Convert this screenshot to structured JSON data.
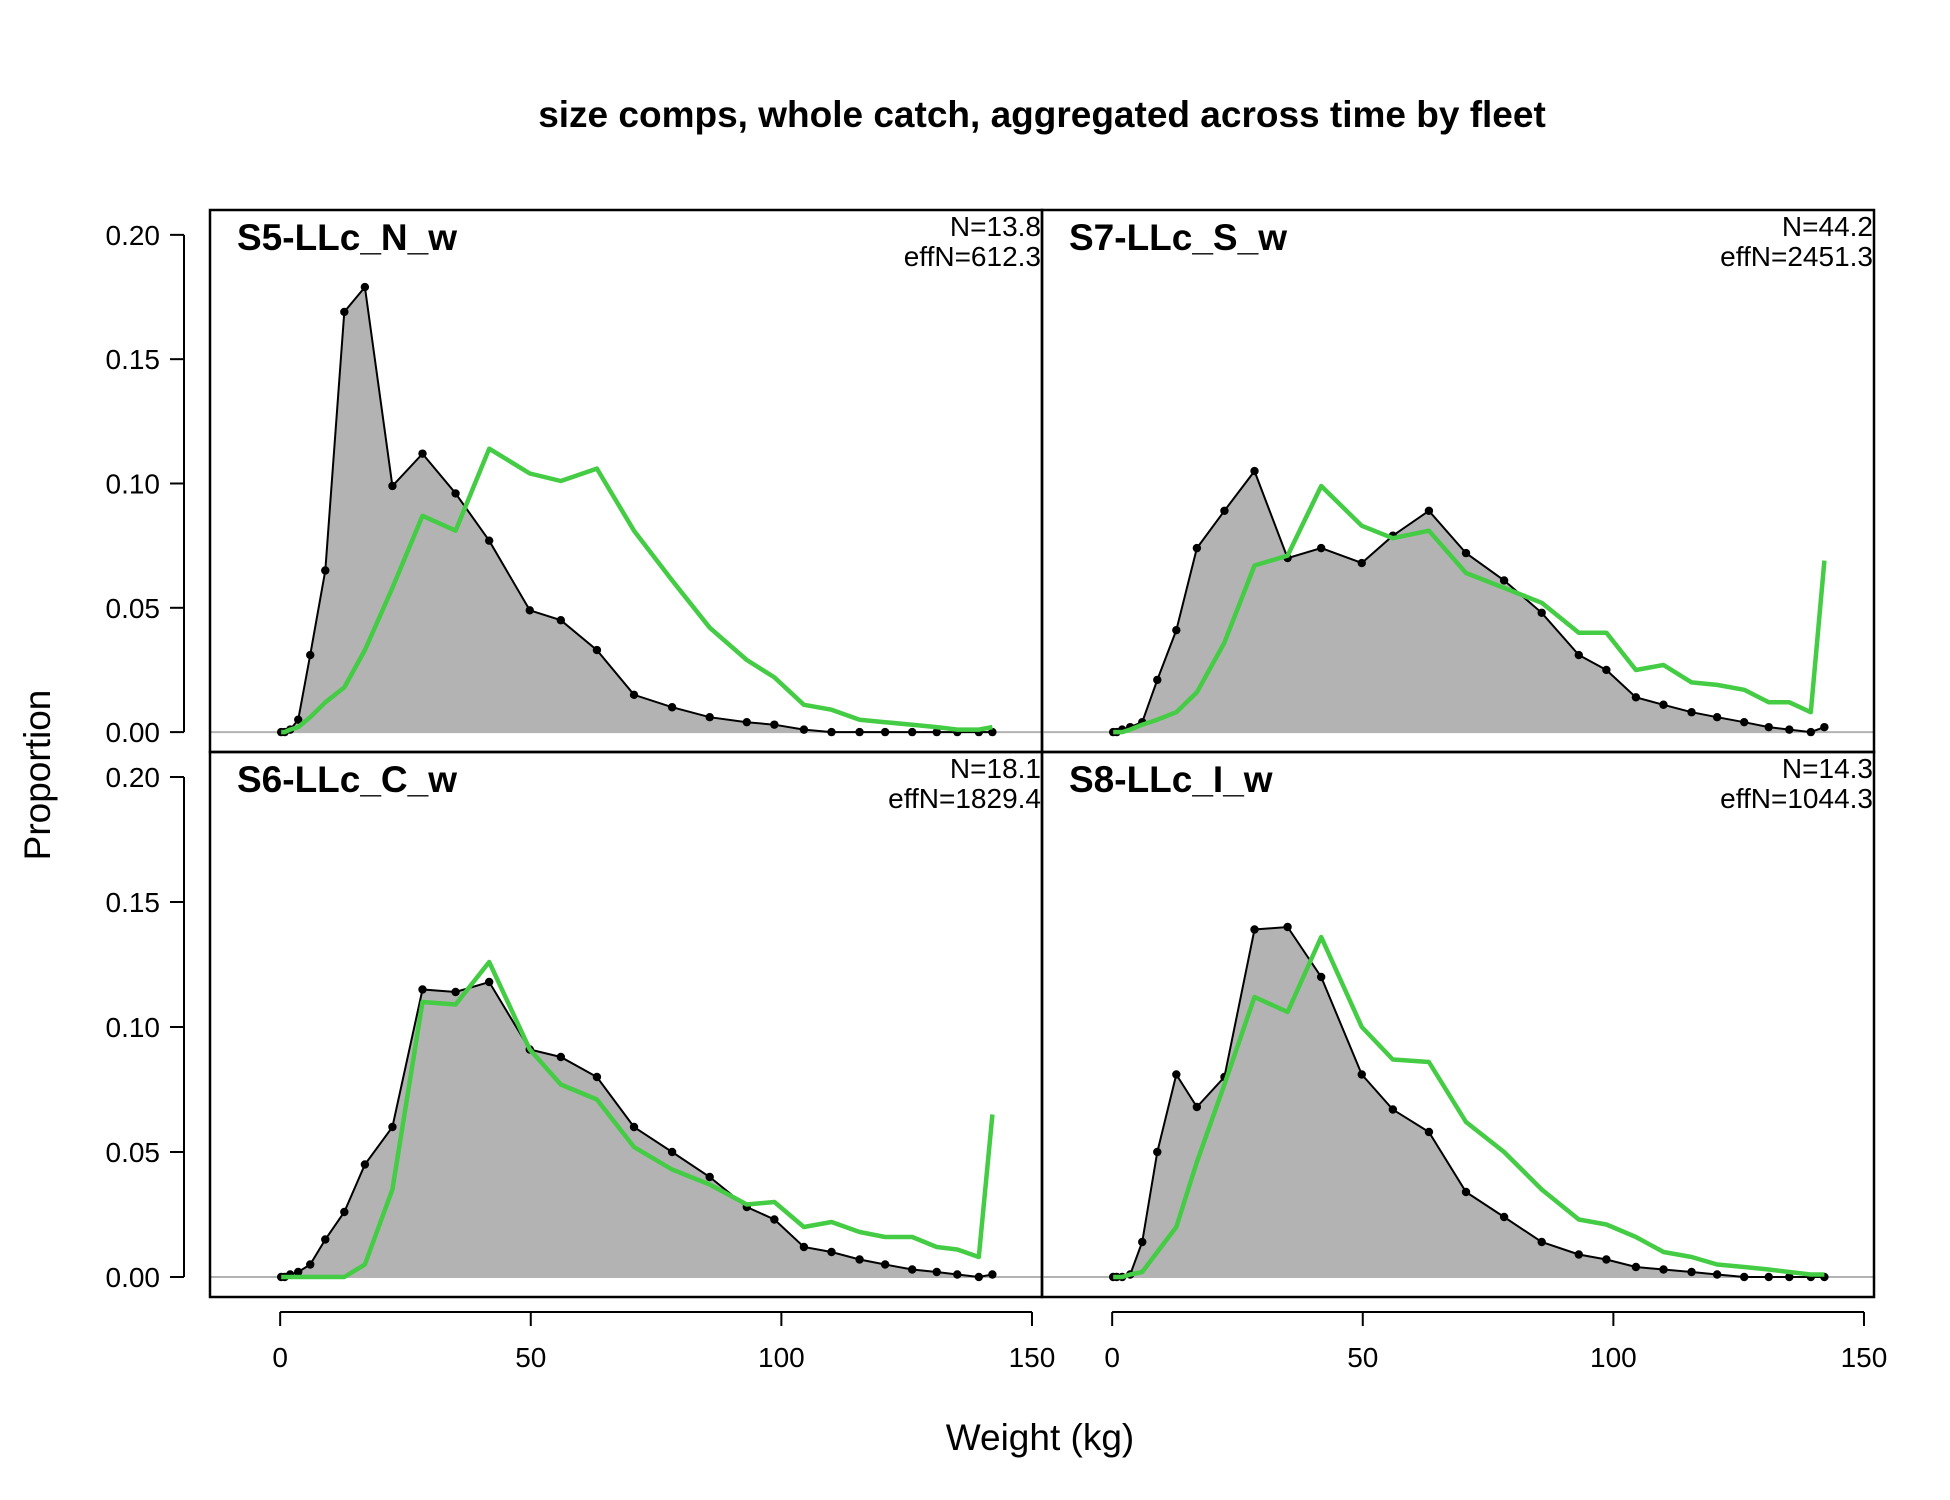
{
  "chart_data": {
    "type": "area",
    "title": "size comps, whole catch, aggregated across time by fleet",
    "xlabel": "Weight (kg)",
    "ylabel": "Proportion",
    "xlim": [
      -14,
      152
    ],
    "ylim": [
      -0.008,
      0.21
    ],
    "x_ticks": [
      0,
      50,
      100,
      150
    ],
    "y_ticks": [
      0.0,
      0.05,
      0.1,
      0.15,
      0.2
    ],
    "y_tick_labels": [
      "0.00",
      "0.05",
      "0.10",
      "0.15",
      "0.20"
    ],
    "colors": {
      "observed_fill": "#b3b3b3",
      "observed_line": "#000000",
      "expected_line": "#44cc44",
      "zero_line": "#b3b3b3"
    },
    "x": [
      0.2,
      0.9,
      2.0,
      3.6,
      6.0,
      9.0,
      12.8,
      16.9,
      22.4,
      28.4,
      35.0,
      41.7,
      49.8,
      56.0,
      63.2,
      70.6,
      78.2,
      85.7,
      93.1,
      98.6,
      104.5,
      110.0,
      115.6,
      120.7,
      126.1,
      131.0,
      135.1,
      139.4,
      142.1
    ],
    "panels": [
      {
        "name": "S5-LLc_N_w",
        "n_text": "N=13.8",
        "effn_text": "effN=612.3",
        "observed": [
          0.0,
          0.0,
          0.001,
          0.005,
          0.031,
          0.065,
          0.169,
          0.179,
          0.099,
          0.112,
          0.096,
          0.077,
          0.049,
          0.045,
          0.033,
          0.015,
          0.01,
          0.006,
          0.004,
          0.003,
          0.001,
          0.0,
          0.0,
          0.0,
          0.0,
          0.0,
          0.0,
          0.0,
          0.0
        ],
        "expected": [
          0.0,
          0.0,
          0.001,
          0.002,
          0.006,
          0.012,
          0.018,
          0.033,
          0.058,
          0.087,
          0.081,
          0.114,
          0.104,
          0.101,
          0.106,
          0.081,
          0.061,
          0.042,
          0.029,
          0.022,
          0.011,
          0.009,
          0.005,
          0.004,
          0.003,
          0.002,
          0.001,
          0.001,
          0.002
        ]
      },
      {
        "name": "S7-LLc_S_w",
        "n_text": "N=44.2",
        "effn_text": "effN=2451.3",
        "observed": [
          0.0,
          0.0,
          0.001,
          0.002,
          0.004,
          0.021,
          0.041,
          0.074,
          0.089,
          0.105,
          0.07,
          0.074,
          0.068,
          0.079,
          0.089,
          0.072,
          0.061,
          0.048,
          0.031,
          0.025,
          0.014,
          0.011,
          0.008,
          0.006,
          0.004,
          0.002,
          0.001,
          0.0,
          0.002
        ],
        "expected": [
          0.0,
          0.0,
          0.0,
          0.001,
          0.003,
          0.005,
          0.008,
          0.016,
          0.036,
          0.067,
          0.071,
          0.099,
          0.083,
          0.078,
          0.081,
          0.064,
          0.058,
          0.052,
          0.04,
          0.04,
          0.025,
          0.027,
          0.02,
          0.019,
          0.017,
          0.012,
          0.012,
          0.008,
          0.069
        ]
      },
      {
        "name": "S6-LLc_C_w",
        "n_text": "N=18.1",
        "effn_text": "effN=1829.4",
        "observed": [
          0.0,
          0.0,
          0.001,
          0.002,
          0.005,
          0.015,
          0.026,
          0.045,
          0.06,
          0.115,
          0.114,
          0.118,
          0.091,
          0.088,
          0.08,
          0.06,
          0.05,
          0.04,
          0.028,
          0.023,
          0.012,
          0.01,
          0.007,
          0.005,
          0.003,
          0.002,
          0.001,
          0.0,
          0.001
        ],
        "expected": [
          0.0,
          0.0,
          0.0,
          0.0,
          0.0,
          0.0,
          0.0,
          0.005,
          0.035,
          0.11,
          0.109,
          0.126,
          0.091,
          0.077,
          0.071,
          0.052,
          0.043,
          0.037,
          0.029,
          0.03,
          0.02,
          0.022,
          0.018,
          0.016,
          0.016,
          0.012,
          0.011,
          0.008,
          0.065
        ]
      },
      {
        "name": "S8-LLc_I_w",
        "n_text": "N=14.3",
        "effn_text": "effN=1044.3",
        "observed": [
          0.0,
          0.0,
          0.0,
          0.001,
          0.014,
          0.05,
          0.081,
          0.068,
          0.08,
          0.139,
          0.14,
          0.12,
          0.081,
          0.067,
          0.058,
          0.034,
          0.024,
          0.014,
          0.009,
          0.007,
          0.004,
          0.003,
          0.002,
          0.001,
          0.0,
          0.0,
          0.0,
          0.0,
          0.0
        ],
        "expected": [
          0.0,
          0.0,
          0.0,
          0.001,
          0.002,
          0.01,
          0.02,
          0.046,
          0.077,
          0.112,
          0.106,
          0.136,
          0.1,
          0.087,
          0.086,
          0.062,
          0.05,
          0.035,
          0.023,
          0.021,
          0.016,
          0.01,
          0.008,
          0.005,
          0.004,
          0.003,
          0.002,
          0.001,
          0.001
        ]
      }
    ]
  }
}
